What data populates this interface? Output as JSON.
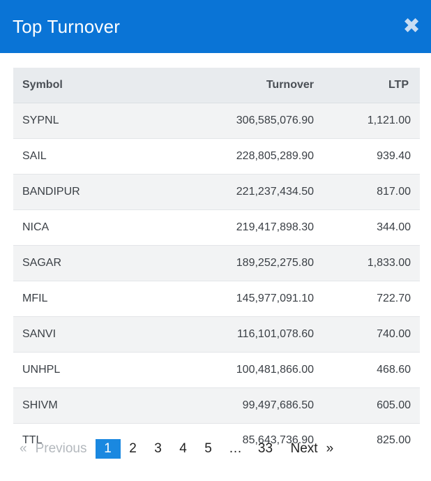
{
  "modal": {
    "title": "Top Turnover",
    "close_icon": "close-icon",
    "accent_color": "#0a74d6"
  },
  "table": {
    "columns": [
      "Symbol",
      "Turnover",
      "LTP"
    ],
    "rows": [
      {
        "symbol": "SYPNL",
        "turnover": "306,585,076.90",
        "ltp": "1,121.00"
      },
      {
        "symbol": "SAIL",
        "turnover": "228,805,289.90",
        "ltp": "939.40"
      },
      {
        "symbol": "BANDIPUR",
        "turnover": "221,237,434.50",
        "ltp": "817.00"
      },
      {
        "symbol": "NICA",
        "turnover": "219,417,898.30",
        "ltp": "344.00"
      },
      {
        "symbol": "SAGAR",
        "turnover": "189,252,275.80",
        "ltp": "1,833.00"
      },
      {
        "symbol": "MFIL",
        "turnover": "145,977,091.10",
        "ltp": "722.70"
      },
      {
        "symbol": "SANVI",
        "turnover": "116,101,078.60",
        "ltp": "740.00"
      },
      {
        "symbol": "UNHPL",
        "turnover": "100,481,866.00",
        "ltp": "468.60"
      },
      {
        "symbol": "SHIVM",
        "turnover": "99,497,686.50",
        "ltp": "605.00"
      },
      {
        "symbol": "TTL",
        "turnover": "85,643,736.90",
        "ltp": "825.00"
      }
    ]
  },
  "pagination": {
    "prev_arrow": "«",
    "prev_label": "Previous",
    "pages": [
      "1",
      "2",
      "3",
      "4",
      "5"
    ],
    "current_page": "1",
    "ellipsis": "…",
    "last_page": "33",
    "next_label": "Next",
    "next_arrow": "»"
  }
}
